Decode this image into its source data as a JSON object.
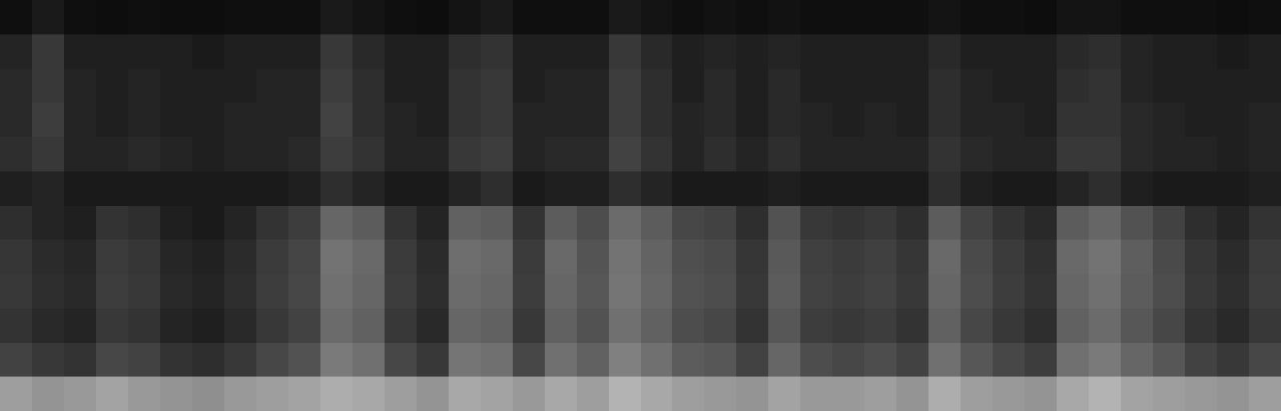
{
  "chart_data": {
    "type": "heatmap",
    "tick_labels": false,
    "zlim": [
      0,
      100
    ],
    "z": [
      [
        62,
        58,
        60,
        64,
        60,
        58,
        56,
        60,
        62,
        64,
        68,
        66,
        62,
        58,
        66,
        64,
        60,
        66,
        62,
        70,
        66,
        62,
        60,
        58,
        64,
        60,
        60,
        62,
        58,
        68,
        62,
        60,
        58,
        66,
        70,
        64,
        62,
        60,
        58,
        62
      ],
      [
        26,
        22,
        20,
        28,
        26,
        20,
        18,
        22,
        28,
        32,
        48,
        44,
        28,
        22,
        46,
        44,
        28,
        44,
        38,
        50,
        44,
        36,
        34,
        26,
        40,
        30,
        28,
        30,
        26,
        44,
        34,
        28,
        24,
        44,
        48,
        40,
        34,
        26,
        22,
        28
      ],
      [
        20,
        16,
        14,
        22,
        20,
        14,
        12,
        16,
        22,
        26,
        42,
        38,
        22,
        16,
        40,
        38,
        22,
        38,
        32,
        44,
        38,
        30,
        28,
        20,
        34,
        24,
        22,
        24,
        20,
        38,
        28,
        22,
        18,
        38,
        42,
        34,
        28,
        20,
        16,
        22
      ],
      [
        22,
        18,
        16,
        24,
        22,
        16,
        14,
        18,
        24,
        28,
        44,
        40,
        24,
        18,
        42,
        40,
        24,
        40,
        34,
        46,
        40,
        32,
        30,
        22,
        36,
        26,
        24,
        26,
        22,
        40,
        30,
        24,
        20,
        40,
        44,
        36,
        30,
        22,
        18,
        24
      ],
      [
        21,
        17,
        15,
        23,
        21,
        15,
        13,
        17,
        23,
        27,
        45,
        41,
        23,
        17,
        43,
        41,
        23,
        41,
        33,
        45,
        39,
        31,
        29,
        21,
        35,
        25,
        23,
        25,
        21,
        41,
        29,
        23,
        19,
        41,
        45,
        37,
        29,
        21,
        17,
        23
      ],
      [
        18,
        14,
        12,
        20,
        18,
        12,
        10,
        14,
        20,
        24,
        40,
        36,
        20,
        14,
        38,
        36,
        20,
        36,
        30,
        42,
        36,
        28,
        26,
        18,
        32,
        22,
        20,
        22,
        18,
        36,
        26,
        20,
        16,
        36,
        40,
        32,
        26,
        18,
        14,
        20
      ],
      [
        12,
        14,
        10,
        10,
        10,
        10,
        10,
        10,
        10,
        12,
        18,
        14,
        10,
        10,
        14,
        18,
        10,
        12,
        12,
        18,
        14,
        10,
        10,
        10,
        12,
        10,
        10,
        10,
        10,
        18,
        12,
        10,
        10,
        14,
        18,
        12,
        10,
        10,
        10,
        12
      ],
      [
        18,
        22,
        14,
        14,
        16,
        14,
        12,
        14,
        14,
        16,
        24,
        20,
        14,
        14,
        22,
        24,
        14,
        16,
        16,
        26,
        20,
        14,
        18,
        14,
        18,
        14,
        14,
        14,
        14,
        20,
        16,
        14,
        14,
        22,
        22,
        16,
        14,
        14,
        12,
        14
      ],
      [
        16,
        24,
        14,
        12,
        14,
        12,
        12,
        14,
        14,
        14,
        26,
        18,
        14,
        12,
        20,
        22,
        14,
        14,
        14,
        24,
        18,
        14,
        16,
        12,
        16,
        14,
        12,
        14,
        12,
        18,
        14,
        14,
        12,
        20,
        20,
        16,
        14,
        12,
        12,
        14
      ],
      [
        16,
        22,
        14,
        12,
        14,
        12,
        12,
        12,
        14,
        14,
        24,
        18,
        12,
        12,
        20,
        22,
        12,
        14,
        14,
        24,
        18,
        12,
        16,
        12,
        16,
        12,
        12,
        12,
        12,
        18,
        14,
        12,
        12,
        18,
        20,
        14,
        12,
        12,
        12,
        12
      ],
      [
        14,
        22,
        12,
        12,
        12,
        12,
        10,
        12,
        12,
        12,
        22,
        16,
        12,
        12,
        18,
        20,
        12,
        12,
        12,
        22,
        16,
        12,
        14,
        12,
        14,
        12,
        12,
        12,
        12,
        16,
        12,
        12,
        12,
        16,
        18,
        14,
        12,
        12,
        10,
        12
      ],
      [
        6,
        10,
        6,
        5,
        6,
        5,
        5,
        6,
        6,
        6,
        10,
        8,
        6,
        5,
        8,
        10,
        6,
        6,
        6,
        10,
        8,
        6,
        7,
        6,
        7,
        6,
        6,
        6,
        6,
        8,
        6,
        6,
        5,
        8,
        8,
        6,
        6,
        6,
        5,
        6
      ]
    ]
  }
}
